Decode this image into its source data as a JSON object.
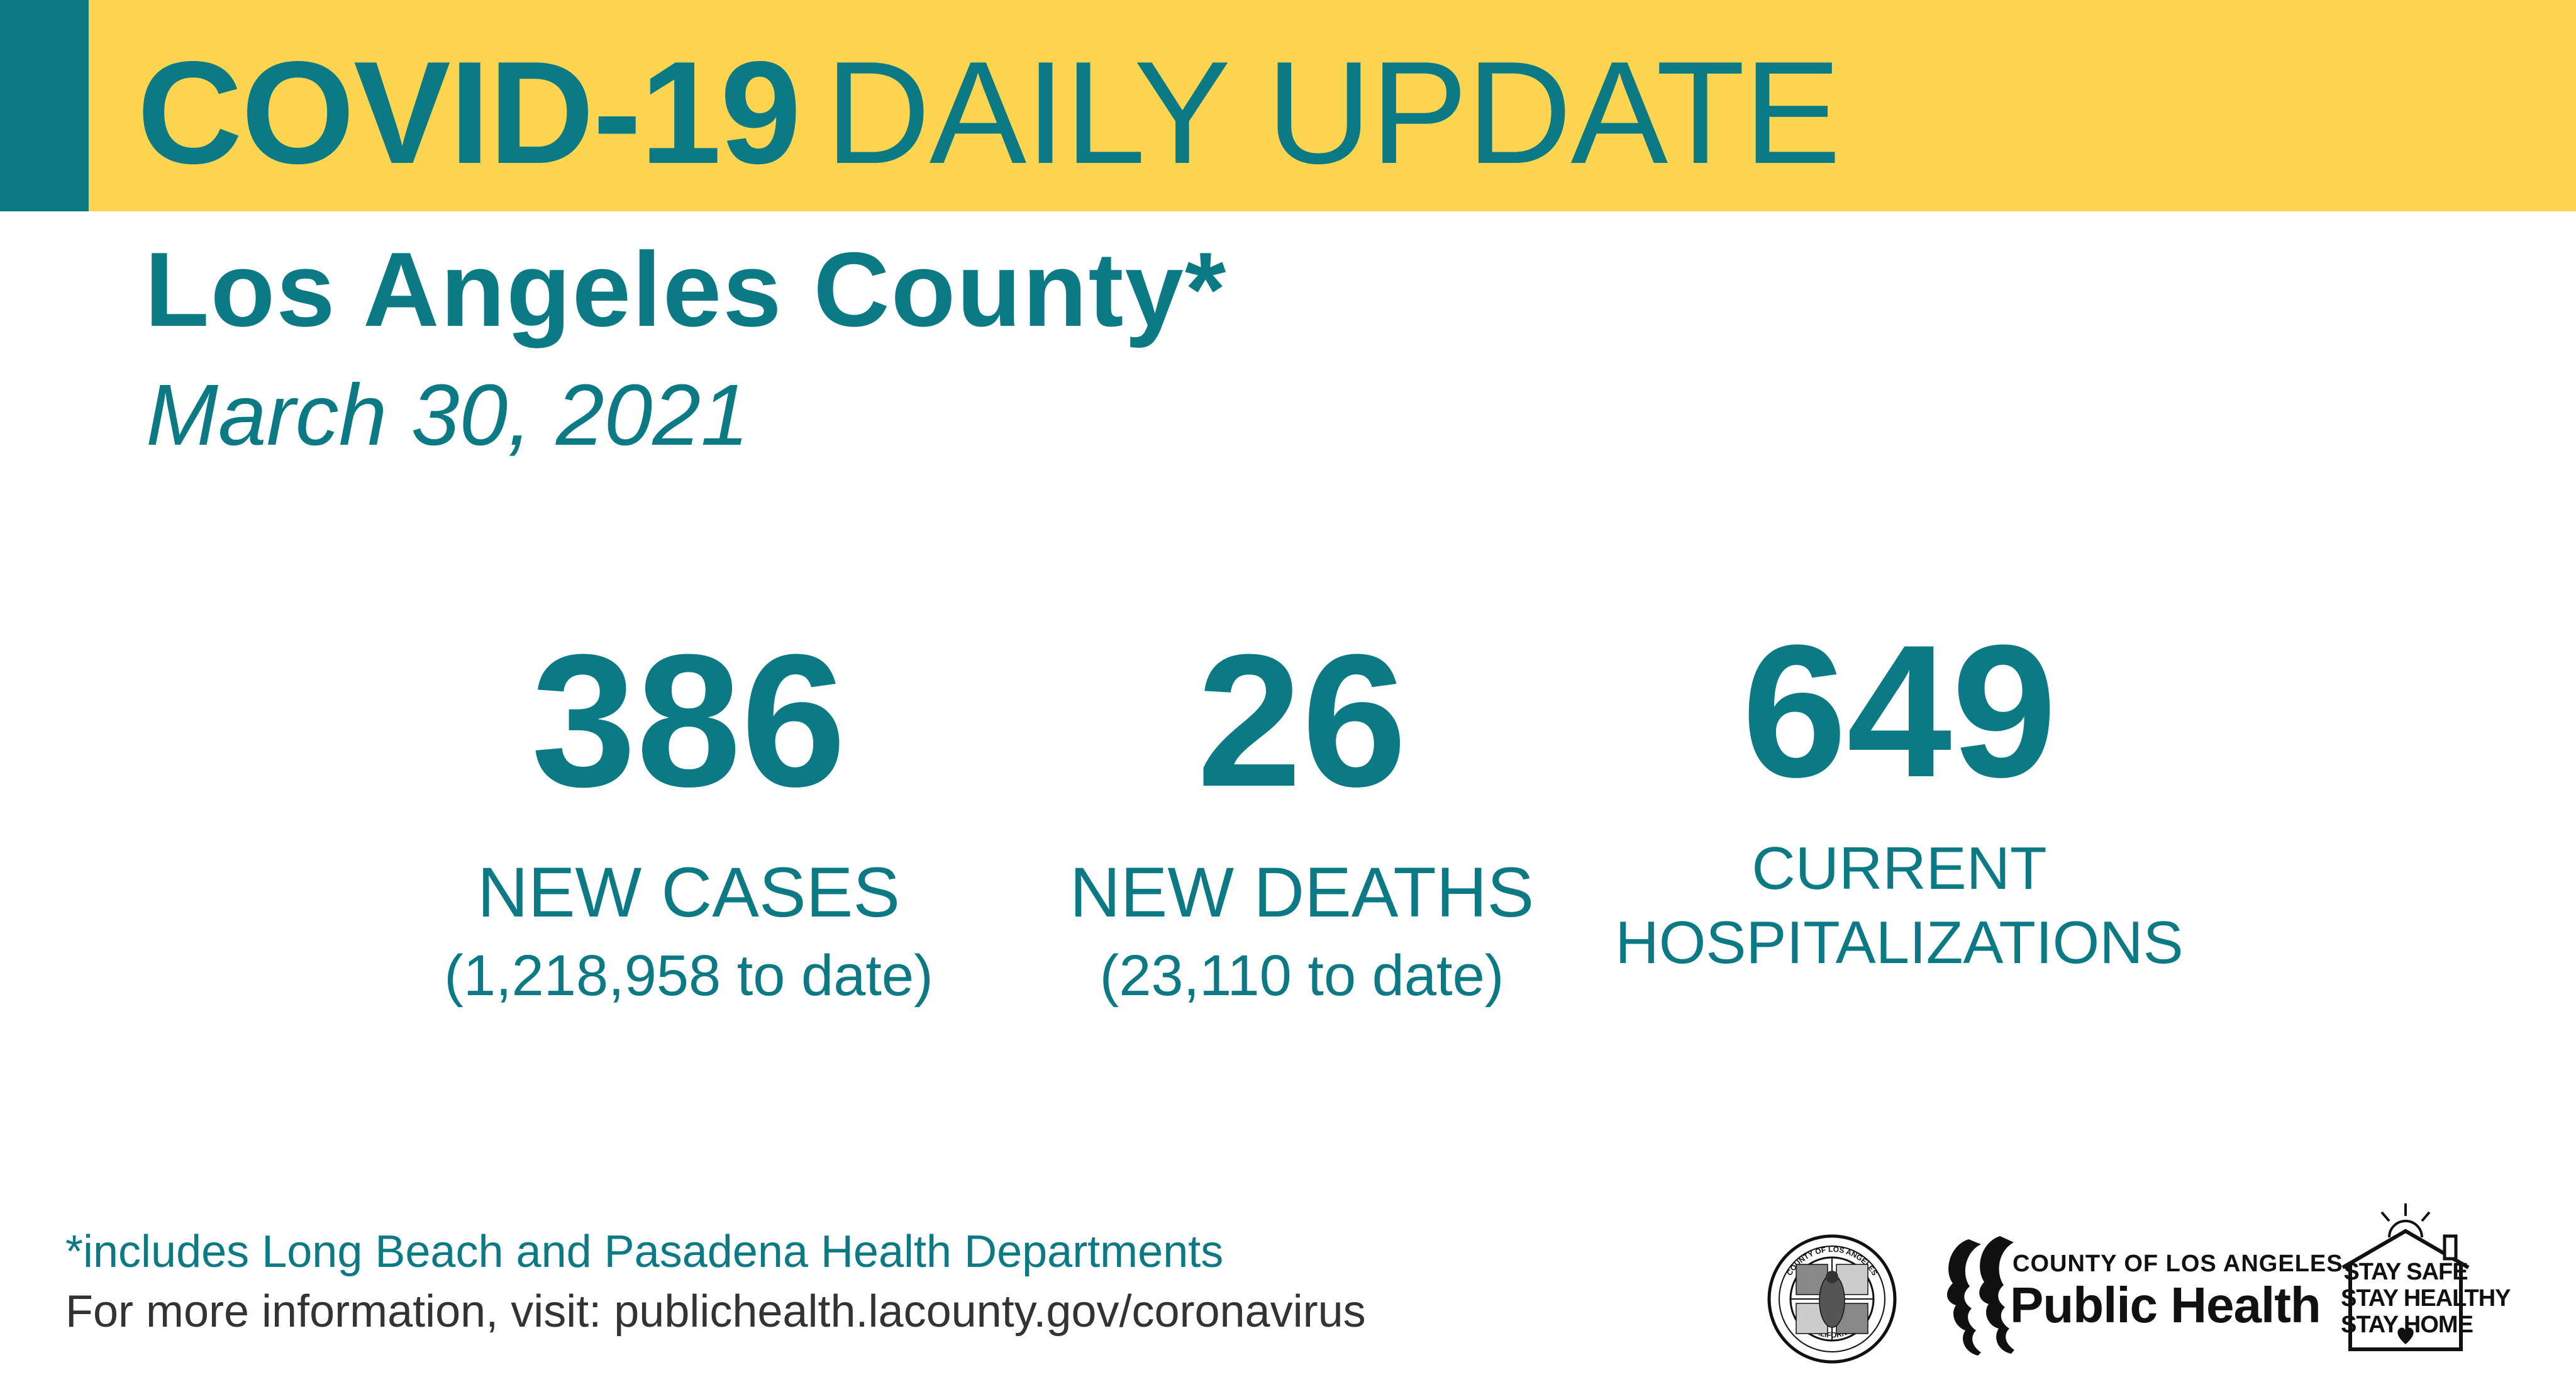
{
  "header": {
    "title_strong": "COVID-19",
    "title_light": "DAILY UPDATE"
  },
  "subtitle": {
    "county": "Los Angeles County*",
    "date": "March 30, 2021"
  },
  "stats": {
    "cases": {
      "value": "386",
      "label": "NEW CASES",
      "sub": "(1,218,958 to date)"
    },
    "deaths": {
      "value": "26",
      "label": "NEW DEATHS",
      "sub": "(23,110  to date)"
    },
    "hospitalizations": {
      "value": "649",
      "label_line1": "CURRENT",
      "label_line2": "HOSPITALIZATIONS"
    }
  },
  "footer": {
    "footnote": "*includes Long Beach and Pasadena Health Departments",
    "more_info": "For more information, visit: publichealth.lacounty.gov/coronavirus"
  },
  "logos": {
    "seal_top_text": "COUNTY OF LOS ANGELES",
    "seal_bottom_text": "CALIFORNIA",
    "public_health_county": "COUNTY OF LOS ANGELES",
    "public_health_name": "Public Health",
    "stay_safe_line1": "STAY SAFE",
    "stay_safe_line2": "STAY HEALTHY",
    "stay_safe_line3": "STAY HOME"
  },
  "colors": {
    "teal": "#0B7A85",
    "yellow": "#FDD44F",
    "dark_text": "#333333"
  }
}
